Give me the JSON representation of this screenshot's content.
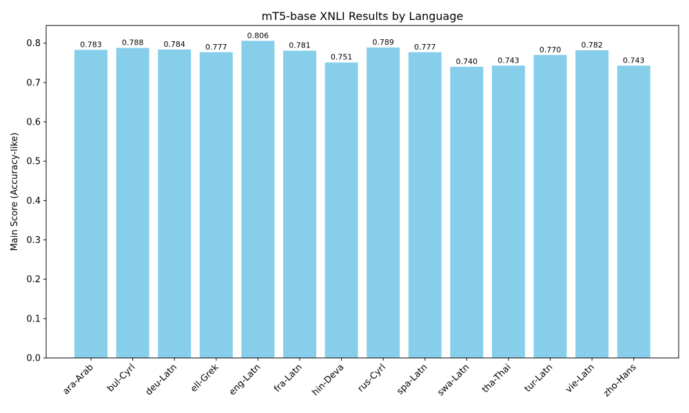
{
  "chart_data": {
    "type": "bar",
    "title": "mT5-base XNLI Results by Language",
    "xlabel": "",
    "ylabel": "Main Score (Accuracy-like)",
    "categories": [
      "ara-Arab",
      "bul-Cyrl",
      "deu-Latn",
      "ell-Grek",
      "eng-Latn",
      "fra-Latn",
      "hin-Deva",
      "rus-Cyrl",
      "spa-Latn",
      "swa-Latn",
      "tha-Thai",
      "tur-Latn",
      "vie-Latn",
      "zho-Hans"
    ],
    "values": [
      0.783,
      0.788,
      0.784,
      0.777,
      0.806,
      0.781,
      0.751,
      0.789,
      0.777,
      0.74,
      0.743,
      0.77,
      0.782,
      0.743
    ],
    "value_labels": [
      "0.783",
      "0.788",
      "0.784",
      "0.777",
      "0.806",
      "0.781",
      "0.751",
      "0.789",
      "0.777",
      "0.740",
      "0.743",
      "0.770",
      "0.782",
      "0.743"
    ],
    "ylim": [
      0,
      0.845
    ],
    "yticks": [
      0.0,
      0.1,
      0.2,
      0.3,
      0.4,
      0.5,
      0.6,
      0.7,
      0.8
    ],
    "ytick_labels": [
      "0.0",
      "0.1",
      "0.2",
      "0.3",
      "0.4",
      "0.5",
      "0.6",
      "0.7",
      "0.8"
    ],
    "grid": false,
    "bar_color": "#87ceeb"
  }
}
